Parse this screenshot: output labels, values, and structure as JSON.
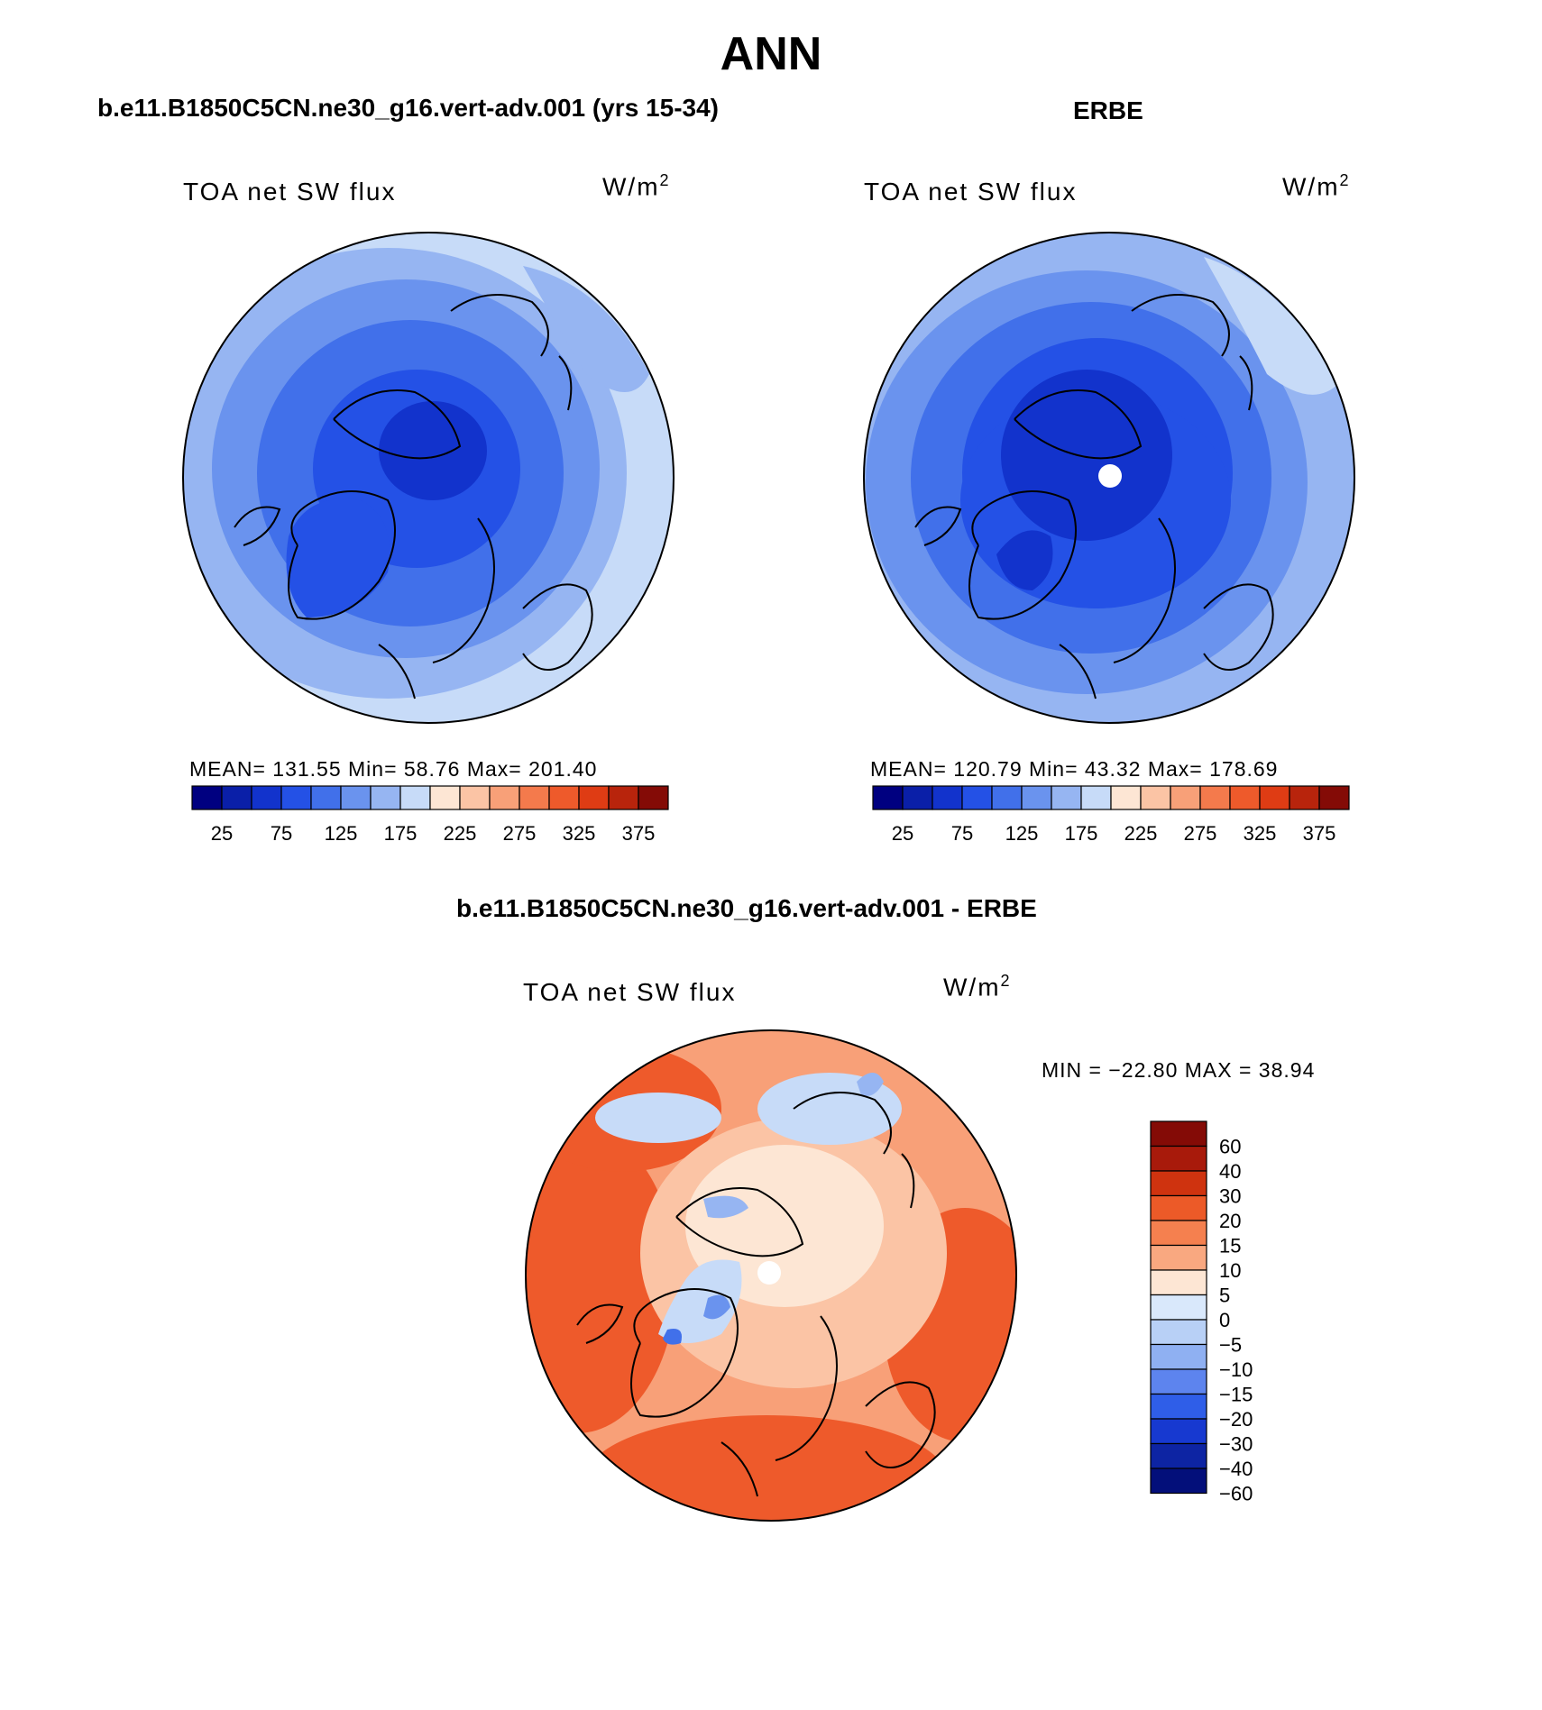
{
  "title": "ANN",
  "colors": {
    "cool": [
      "#081d8c",
      "#0b2fb8",
      "#1846dc",
      "#2f62f0",
      "#4d7bef",
      "#7099f2",
      "#9cb8f5",
      "#c6d8f8",
      "#e3eefb"
    ],
    "warm": [
      "#fbe6d3",
      "#fbc8ac",
      "#f9a27e",
      "#f67a4f",
      "#ef552e",
      "#df3a18",
      "#bd2410",
      "#8f1208"
    ],
    "absolute_scale": [
      "#000080",
      "#0a1fa8",
      "#1233cc",
      "#2451e6",
      "#4170ea",
      "#6a93ee",
      "#96b5f2",
      "#c7dbf8",
      "#fde6d4",
      "#fbc4a5",
      "#f8a078",
      "#f47a4c",
      "#ee5a2b",
      "#df3c14",
      "#b8240c",
      "#840b06"
    ],
    "diff_scale": [
      "#840b06",
      "#a81a0b",
      "#cf330f",
      "#ec5a28",
      "#f5804f",
      "#f9a880",
      "#fde6d4",
      "#d9e8fb",
      "#b8d0f6",
      "#8fb0f2",
      "#5d84ee",
      "#2f5ee8",
      "#1739d0",
      "#0d24a3",
      "#030f7a"
    ]
  },
  "panels": {
    "left": {
      "header": "b.e11.B1850C5CN.ne30_g16.vert-adv.001 (yrs 15-34)",
      "label": "TOA net SW flux",
      "units": "W/m",
      "units_sup": "2",
      "stats": "MEAN= 131.55   Min=   58.76   Max= 201.40"
    },
    "right": {
      "header": "ERBE",
      "label": "TOA net SW flux",
      "units": "W/m",
      "units_sup": "2",
      "stats": "MEAN= 120.79   Min=   43.32   Max= 178.69"
    },
    "diff": {
      "header": "b.e11.B1850C5CN.ne30_g16.vert-adv.001 - ERBE",
      "label": "TOA net SW flux",
      "units": "W/m",
      "units_sup": "2",
      "stats": "MIN = −22.80 MAX =   38.94"
    }
  },
  "chart_data": [
    {
      "type": "heatmap",
      "title": "TOA net SW flux",
      "projection": "north polar stereographic",
      "units": "W/m2",
      "mean": 131.55,
      "min": 58.76,
      "max": 201.4,
      "colorbar_ticks": [
        "25",
        "75",
        "125",
        "175",
        "225",
        "275",
        "325",
        "375"
      ]
    },
    {
      "type": "heatmap",
      "title": "TOA net SW flux",
      "projection": "north polar stereographic",
      "units": "W/m2",
      "mean": 120.79,
      "min": 43.32,
      "max": 178.69,
      "colorbar_ticks": [
        "25",
        "75",
        "125",
        "175",
        "225",
        "275",
        "325",
        "375"
      ]
    },
    {
      "type": "heatmap",
      "title": "TOA net SW flux",
      "projection": "north polar stereographic",
      "units": "W/m2",
      "min": -22.8,
      "max": 38.94,
      "colorbar_ticks": [
        "60",
        "40",
        "30",
        "20",
        "15",
        "10",
        "5",
        "0",
        "−5",
        "−10",
        "−15",
        "−20",
        "−30",
        "−40",
        "−60"
      ]
    }
  ]
}
